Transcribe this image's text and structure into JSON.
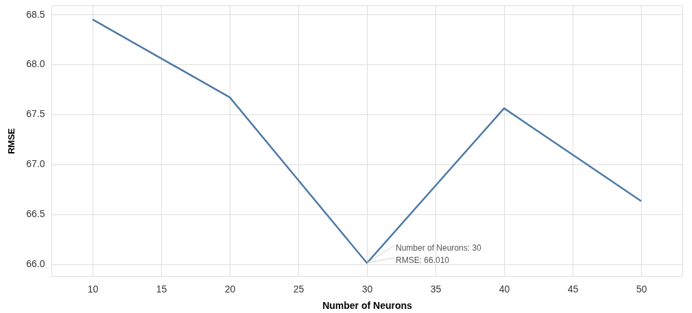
{
  "chart_data": {
    "type": "line",
    "xlabel": "Number of Neurons",
    "ylabel": "RMSE",
    "x": [
      10,
      20,
      30,
      40,
      50
    ],
    "series": [
      {
        "color": "#4e79a7",
        "values": [
          68.45,
          67.67,
          66.01,
          67.56,
          66.63
        ]
      }
    ],
    "xlim": [
      7,
      53
    ],
    "xticks": [
      10,
      15,
      20,
      25,
      30,
      35,
      40,
      45,
      50
    ],
    "ylim": [
      65.88,
      68.59
    ],
    "yticks": [
      {
        "value": 66,
        "label": "66.0"
      },
      66.5,
      {
        "value": 67,
        "label": "67.0"
      },
      67.5,
      {
        "value": 68,
        "label": "68.0"
      },
      68.5
    ],
    "grid": true,
    "marker": "none",
    "line_style": "solid",
    "annotations": [
      {
        "text": "Number of Neurons: 30",
        "x": 30,
        "y": 66.01
      },
      {
        "text": "RMSE: 66.010",
        "x": 30,
        "y": 66.01
      }
    ]
  }
}
